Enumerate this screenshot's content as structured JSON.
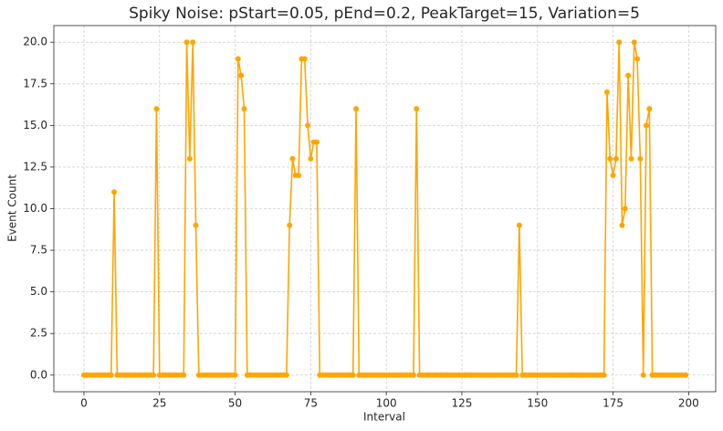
{
  "chart_data": {
    "type": "line",
    "title": "Spiky Noise: pStart=0.05, pEnd=0.2, PeakTarget=15, Variation=5",
    "x_label": "Interval",
    "y_label": "Event Count",
    "x": [
      0,
      1,
      2,
      3,
      4,
      5,
      6,
      7,
      8,
      9,
      10,
      11,
      12,
      13,
      14,
      15,
      16,
      17,
      18,
      19,
      20,
      21,
      22,
      23,
      24,
      25,
      26,
      27,
      28,
      29,
      30,
      31,
      32,
      33,
      34,
      35,
      36,
      37,
      38,
      39,
      40,
      41,
      42,
      43,
      44,
      45,
      46,
      47,
      48,
      49,
      50,
      51,
      52,
      53,
      54,
      55,
      56,
      57,
      58,
      59,
      60,
      61,
      62,
      63,
      64,
      65,
      66,
      67,
      68,
      69,
      70,
      71,
      72,
      73,
      74,
      75,
      76,
      77,
      78,
      79,
      80,
      81,
      82,
      83,
      84,
      85,
      86,
      87,
      88,
      89,
      90,
      91,
      92,
      93,
      94,
      95,
      96,
      97,
      98,
      99,
      100,
      101,
      102,
      103,
      104,
      105,
      106,
      107,
      108,
      109,
      110,
      111,
      112,
      113,
      114,
      115,
      116,
      117,
      118,
      119,
      120,
      121,
      122,
      123,
      124,
      125,
      126,
      127,
      128,
      129,
      130,
      131,
      132,
      133,
      134,
      135,
      136,
      137,
      138,
      139,
      140,
      141,
      142,
      143,
      144,
      145,
      146,
      147,
      148,
      149,
      150,
      151,
      152,
      153,
      154,
      155,
      156,
      157,
      158,
      159,
      160,
      161,
      162,
      163,
      164,
      165,
      166,
      167,
      168,
      169,
      170,
      171,
      172,
      173,
      174,
      175,
      176,
      177,
      178,
      179,
      180,
      181,
      182,
      183,
      184,
      185,
      186,
      187,
      188,
      189,
      190,
      191,
      192,
      193,
      194,
      195,
      196,
      197,
      198,
      199
    ],
    "series": [
      {
        "name": "Event Count",
        "color": "#ffa500",
        "values": [
          0,
          0,
          0,
          0,
          0,
          0,
          0,
          0,
          0,
          0,
          11,
          0,
          0,
          0,
          0,
          0,
          0,
          0,
          0,
          0,
          0,
          0,
          0,
          0,
          16,
          0,
          0,
          0,
          0,
          0,
          0,
          0,
          0,
          0,
          20,
          13,
          20,
          9,
          0,
          0,
          0,
          0,
          0,
          0,
          0,
          0,
          0,
          0,
          0,
          0,
          0,
          19,
          18,
          16,
          0,
          0,
          0,
          0,
          0,
          0,
          0,
          0,
          0,
          0,
          0,
          0,
          0,
          0,
          9,
          13,
          12,
          12,
          19,
          19,
          15,
          13,
          14,
          14,
          0,
          0,
          0,
          0,
          0,
          0,
          0,
          0,
          0,
          0,
          0,
          0,
          16,
          0,
          0,
          0,
          0,
          0,
          0,
          0,
          0,
          0,
          0,
          0,
          0,
          0,
          0,
          0,
          0,
          0,
          0,
          0,
          16,
          0,
          0,
          0,
          0,
          0,
          0,
          0,
          0,
          0,
          0,
          0,
          0,
          0,
          0,
          0,
          0,
          0,
          0,
          0,
          0,
          0,
          0,
          0,
          0,
          0,
          0,
          0,
          0,
          0,
          0,
          0,
          0,
          0,
          9,
          0,
          0,
          0,
          0,
          0,
          0,
          0,
          0,
          0,
          0,
          0,
          0,
          0,
          0,
          0,
          0,
          0,
          0,
          0,
          0,
          0,
          0,
          0,
          0,
          0,
          0,
          0,
          0,
          17,
          13,
          12,
          13,
          20,
          9,
          10,
          18,
          13,
          20,
          19,
          13,
          0,
          15,
          16,
          0,
          0,
          0,
          0,
          0,
          0,
          0,
          0,
          0,
          0,
          0,
          0
        ]
      }
    ],
    "xlim": [
      -9.95,
      208.95
    ],
    "ylim": [
      -1,
      21
    ],
    "xticks": [
      0,
      25,
      50,
      75,
      100,
      125,
      150,
      175,
      200
    ],
    "yticks": [
      {
        "value": 0,
        "label": "0.0"
      },
      {
        "value": 2.5,
        "label": "2.5"
      },
      {
        "value": 5,
        "label": "5.0"
      },
      {
        "value": 7.5,
        "label": "7.5"
      },
      {
        "value": 10,
        "label": "10.0"
      },
      {
        "value": 12.5,
        "label": "12.5"
      },
      {
        "value": 15,
        "label": "15.0"
      },
      {
        "value": 17.5,
        "label": "17.5"
      },
      {
        "value": 20,
        "label": "20.0"
      }
    ],
    "grid": true
  }
}
